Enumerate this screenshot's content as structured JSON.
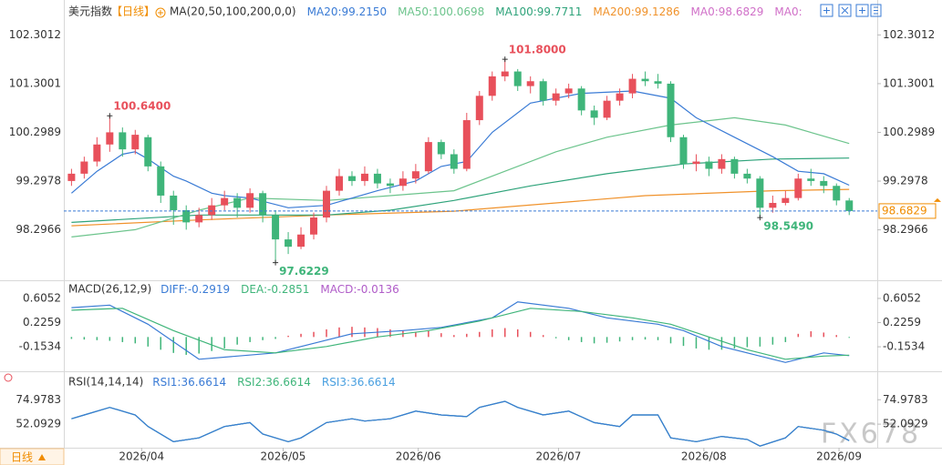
{
  "header": {
    "title": "美元指数",
    "period": "【日线】",
    "indicator": "MA(20,50,100,200,0,0)"
  },
  "period_tab": "日线",
  "watermark": "FX678",
  "chart_data": [
    {
      "type": "candlestick",
      "ylim": [
        97.41,
        102.57
      ],
      "yticks": [
        102.3012,
        101.3001,
        100.2989,
        99.2978,
        98.2966
      ],
      "xlim": [
        -0.6,
        63.2
      ],
      "xticks": [
        {
          "value": 5.5,
          "label": "2026/04"
        },
        {
          "value": 16.6,
          "label": "2026/05"
        },
        {
          "value": 27.2,
          "label": "2026/06"
        },
        {
          "value": 38.2,
          "label": "2026/07"
        },
        {
          "value": 49.6,
          "label": "2026/08"
        },
        {
          "value": 60.2,
          "label": "2026/09"
        }
      ],
      "up_color": "#e8505b",
      "down_color": "#3fb57a",
      "open": [
        99.3,
        99.45,
        99.7,
        100.05,
        100.3,
        99.95,
        100.2,
        99.6,
        99.0,
        98.7,
        98.45,
        98.6,
        98.8,
        98.95,
        98.75,
        99.05,
        98.6,
        98.1,
        97.95,
        98.2,
        98.55,
        99.1,
        99.4,
        99.3,
        99.45,
        99.25,
        99.2,
        99.35,
        99.5,
        100.1,
        99.85,
        99.55,
        100.55,
        101.05,
        101.45,
        101.55,
        101.25,
        101.35,
        100.95,
        101.1,
        101.2,
        100.75,
        100.6,
        100.95,
        101.1,
        101.4,
        101.35,
        101.3,
        100.2,
        99.65,
        99.7,
        99.55,
        99.75,
        99.45,
        99.35,
        98.75,
        98.85,
        98.95,
        99.35,
        99.3,
        99.2,
        98.9
      ],
      "high": [
        99.55,
        99.8,
        100.2,
        100.64,
        100.4,
        100.35,
        100.25,
        99.7,
        99.1,
        98.8,
        98.75,
        98.95,
        99.1,
        99.05,
        99.15,
        99.1,
        98.7,
        98.25,
        98.35,
        98.65,
        99.2,
        99.55,
        99.5,
        99.6,
        99.55,
        99.35,
        99.5,
        99.65,
        100.2,
        100.15,
        99.95,
        100.7,
        101.15,
        101.55,
        101.8,
        101.6,
        101.45,
        101.4,
        101.2,
        101.3,
        101.25,
        100.85,
        101.05,
        101.2,
        101.5,
        101.55,
        101.5,
        101.35,
        100.25,
        99.85,
        99.8,
        99.85,
        99.8,
        99.55,
        99.4,
        99.0,
        99.1,
        99.45,
        99.55,
        99.4,
        99.25,
        98.95
      ],
      "low": [
        99.2,
        99.35,
        99.6,
        99.9,
        99.8,
        99.85,
        99.5,
        98.85,
        98.4,
        98.3,
        98.35,
        98.5,
        98.7,
        98.55,
        98.65,
        98.45,
        97.6229,
        97.8,
        97.9,
        98.1,
        98.45,
        99.0,
        99.2,
        99.2,
        99.15,
        99.05,
        99.1,
        99.25,
        99.45,
        99.75,
        99.45,
        99.5,
        100.45,
        100.95,
        101.35,
        101.15,
        101.1,
        100.85,
        100.85,
        101.0,
        100.65,
        100.45,
        100.55,
        100.85,
        101.0,
        101.25,
        101.2,
        100.1,
        99.55,
        99.5,
        99.4,
        99.45,
        99.35,
        99.25,
        98.549,
        98.65,
        98.8,
        98.9,
        99.2,
        99.05,
        98.8,
        98.6
      ],
      "close": [
        99.45,
        99.7,
        100.05,
        100.3,
        99.95,
        100.25,
        99.6,
        99.0,
        98.7,
        98.45,
        98.6,
        98.8,
        98.95,
        98.75,
        99.05,
        98.6,
        98.1,
        97.95,
        98.2,
        98.55,
        99.1,
        99.4,
        99.3,
        99.45,
        99.25,
        99.2,
        99.35,
        99.5,
        100.1,
        99.85,
        99.55,
        100.55,
        101.05,
        101.45,
        101.55,
        101.25,
        101.35,
        100.95,
        101.1,
        101.2,
        100.75,
        100.6,
        100.95,
        101.1,
        101.4,
        101.35,
        101.3,
        100.2,
        99.65,
        99.7,
        99.55,
        99.75,
        99.45,
        99.35,
        98.75,
        98.85,
        98.95,
        99.35,
        99.3,
        99.2,
        98.9,
        98.6829
      ],
      "price_line_color": "#3a7bd5",
      "price_box_color": "#f08c00",
      "high_annotations": [
        {
          "index": 3,
          "value": 100.64,
          "label": "100.6400"
        },
        {
          "index": 34,
          "value": 101.8,
          "label": "101.8000"
        }
      ],
      "low_annotations": [
        {
          "index": 16,
          "value": 97.6229,
          "label": "97.6229"
        },
        {
          "index": 54,
          "value": 98.549,
          "label": "98.5490"
        }
      ],
      "series": [
        {
          "name": "MA20:",
          "color": "#3a7bd5",
          "last_label": "99.2150",
          "x": [
            0,
            2,
            4,
            5,
            6,
            8,
            9,
            11,
            12,
            14,
            17,
            20,
            24,
            27,
            29,
            31,
            33,
            36,
            40,
            44,
            47,
            49,
            52,
            55,
            57,
            59,
            61
          ],
          "values": [
            99.05,
            99.5,
            99.85,
            99.9,
            99.75,
            99.4,
            99.3,
            99.05,
            99.0,
            98.95,
            98.75,
            98.8,
            99.1,
            99.3,
            99.6,
            99.7,
            100.3,
            100.9,
            101.1,
            101.15,
            101.0,
            100.6,
            100.2,
            99.8,
            99.5,
            99.45,
            99.215
          ]
        },
        {
          "name": "MA50:",
          "color": "#6cc48c",
          "last_label": "100.0698",
          "x": [
            0,
            5,
            10,
            14,
            20,
            25,
            30,
            34,
            38,
            42,
            47,
            52,
            56,
            61
          ],
          "values": [
            98.15,
            98.3,
            98.7,
            98.95,
            98.9,
            99.0,
            99.1,
            99.5,
            99.9,
            100.2,
            100.45,
            100.6,
            100.45,
            100.0698
          ]
        },
        {
          "name": "MA100:",
          "color": "#2ea37a",
          "last_label": "99.7711",
          "x": [
            0,
            10,
            20,
            25,
            30,
            36,
            42,
            48,
            55,
            61
          ],
          "values": [
            98.45,
            98.6,
            98.6,
            98.7,
            98.9,
            99.2,
            99.45,
            99.65,
            99.75,
            99.7711
          ]
        },
        {
          "name": "MA200:",
          "color": "#f0922b",
          "last_label": "99.1286",
          "x": [
            0,
            10,
            20,
            30,
            38,
            45,
            55,
            61
          ],
          "values": [
            98.38,
            98.5,
            98.6,
            98.68,
            98.85,
            99.0,
            99.1,
            99.1286
          ]
        }
      ],
      "legend_extra": [
        {
          "name": "MA0:",
          "value": 98.6829,
          "color": "#d070c8"
        },
        {
          "name": "MA0:",
          "color": "#d070c8"
        }
      ]
    },
    {
      "type": "macd",
      "title": "MACD(26,12,9)",
      "ylim": [
        -0.495,
        0.833
      ],
      "yticks": [
        0.6052,
        0.2259,
        -0.1534
      ],
      "series": [
        {
          "name": "DIFF:",
          "color": "#3a7bd5",
          "x": [
            0,
            3,
            6,
            10,
            13,
            16,
            19,
            22,
            26,
            29,
            33,
            35,
            39,
            42,
            46,
            48,
            51,
            54,
            56,
            59,
            61
          ],
          "values": [
            0.46,
            0.5,
            0.2,
            -0.35,
            -0.3,
            -0.25,
            -0.1,
            0.05,
            0.1,
            0.15,
            0.3,
            0.55,
            0.45,
            0.3,
            0.2,
            0.1,
            -0.15,
            -0.3,
            -0.4,
            -0.25,
            -0.2919
          ]
        },
        {
          "name": "DEA:",
          "color": "#3fb57a",
          "x": [
            0,
            4,
            8,
            12,
            16,
            20,
            24,
            28,
            32,
            36,
            40,
            44,
            47,
            50,
            53,
            56,
            59,
            61
          ],
          "values": [
            0.42,
            0.45,
            0.1,
            -0.2,
            -0.25,
            -0.15,
            0.0,
            0.1,
            0.25,
            0.45,
            0.4,
            0.3,
            0.2,
            0.0,
            -0.2,
            -0.35,
            -0.3,
            -0.2851
          ]
        }
      ],
      "histogram": {
        "name": "MACD:",
        "color": "#b05cc8",
        "up_color": "#e8505b",
        "down_color": "#3fb57a",
        "values": [
          -0.03,
          -0.04,
          -0.05,
          -0.06,
          -0.08,
          -0.1,
          -0.15,
          -0.2,
          -0.25,
          -0.28,
          -0.26,
          -0.22,
          -0.18,
          -0.12,
          -0.08,
          -0.05,
          -0.03,
          0.02,
          0.05,
          0.08,
          0.12,
          0.15,
          0.16,
          0.15,
          0.14,
          0.12,
          0.1,
          0.08,
          0.1,
          0.06,
          0.03,
          0.05,
          0.08,
          0.12,
          0.14,
          0.12,
          0.08,
          0.03,
          -0.02,
          -0.05,
          -0.08,
          -0.1,
          -0.09,
          -0.07,
          -0.05,
          -0.04,
          -0.05,
          -0.1,
          -0.14,
          -0.18,
          -0.2,
          -0.2,
          -0.18,
          -0.16,
          -0.15,
          -0.12,
          -0.08,
          0.05,
          0.09,
          0.07,
          0.03,
          -0.0136
        ]
      }
    },
    {
      "type": "rsi",
      "title": "RSI(14,14,14)",
      "ylim": [
        30,
        88
      ],
      "yticks": [
        74.9783,
        52.0929
      ],
      "series": [
        {
          "name": "RSI3:",
          "color": "#4aa0e0",
          "x": [
            0,
            1,
            3,
            5,
            6,
            8,
            10,
            12,
            14,
            15,
            17,
            18,
            20,
            22,
            23,
            25,
            27,
            29,
            31,
            32,
            34,
            35,
            37,
            39,
            41,
            43,
            44,
            46,
            47,
            49,
            51,
            53,
            54,
            56,
            57,
            59,
            60,
            61
          ],
          "values": [
            57.1,
            60.7,
            67.8,
            60.7,
            49.9,
            35.6,
            39.2,
            49.9,
            53.5,
            42.8,
            35.6,
            39.2,
            53.5,
            57.1,
            55.0,
            57.1,
            64.3,
            60.7,
            59.2,
            67.8,
            73.5,
            67.8,
            60.7,
            64.3,
            53.5,
            49.9,
            60.7,
            60.7,
            39.2,
            35.6,
            40.6,
            37.8,
            31.5,
            39.2,
            49.9,
            46.4,
            42.8,
            36.6614
          ]
        },
        {
          "name": "RSI2:",
          "color": "#3fb57a",
          "x": [
            0,
            1,
            3,
            5,
            6,
            8,
            10,
            12,
            14,
            15,
            17,
            18,
            20,
            22,
            23,
            25,
            27,
            29,
            31,
            32,
            34,
            35,
            37,
            39,
            41,
            43,
            44,
            46,
            47,
            49,
            51,
            53,
            54,
            56,
            57,
            59,
            60,
            61
          ],
          "values": [
            57.1,
            60.7,
            67.8,
            60.7,
            49.9,
            35.6,
            39.2,
            49.9,
            53.5,
            42.8,
            35.6,
            39.2,
            53.5,
            57.1,
            55.0,
            57.1,
            64.3,
            60.7,
            59.2,
            67.8,
            73.5,
            67.8,
            60.7,
            64.3,
            53.5,
            49.9,
            60.7,
            60.7,
            39.2,
            35.6,
            40.6,
            37.8,
            31.5,
            39.2,
            49.9,
            46.4,
            42.8,
            36.6614
          ]
        },
        {
          "name": "RSI1:",
          "color": "#3a7bd5",
          "x": [
            0,
            1,
            3,
            5,
            6,
            8,
            10,
            12,
            14,
            15,
            17,
            18,
            20,
            22,
            23,
            25,
            27,
            29,
            31,
            32,
            34,
            35,
            37,
            39,
            41,
            43,
            44,
            46,
            47,
            49,
            51,
            53,
            54,
            56,
            57,
            59,
            60,
            61
          ],
          "values": [
            57.1,
            60.7,
            67.8,
            60.7,
            49.9,
            35.6,
            39.2,
            49.9,
            53.5,
            42.8,
            35.6,
            39.2,
            53.5,
            57.1,
            55.0,
            57.1,
            64.3,
            60.7,
            59.2,
            67.8,
            73.5,
            67.8,
            60.7,
            64.3,
            53.5,
            49.9,
            60.7,
            60.7,
            39.2,
            35.6,
            40.6,
            37.8,
            31.5,
            39.2,
            49.9,
            46.4,
            42.8,
            36.6614
          ]
        }
      ],
      "legend_order": [
        2,
        1,
        0
      ]
    }
  ]
}
